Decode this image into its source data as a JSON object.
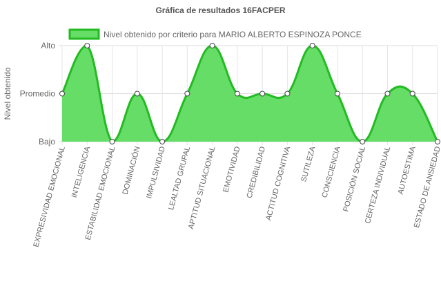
{
  "chart_data": {
    "type": "area",
    "title": "Gráfica de resultados 16FACPER",
    "ylabel": "Nivel obtenido",
    "xlabel": "",
    "y_levels": [
      "Bajo",
      "Promedio",
      "Alto"
    ],
    "ylim": [
      0,
      2
    ],
    "legend_position": "top",
    "grid": true,
    "categories": [
      "EXPRESIVIDAD EMOCIONAL",
      "INTELIGENCIA",
      "ESTABILIDAD EMOCIONAL",
      "DOMINACIÓN",
      "IMPULSIVIDAD",
      "LEALTAD GRUPAL",
      "APTITUD SITUACIONAL",
      "EMOTIVIDAD",
      "CREDIBILIDAD",
      "ACTITUD COGNITIVA",
      "SUTILEZA",
      "CONSCIENCIA",
      "POSICIÓN SOCIAL",
      "CERTEZA INDIVIDUAL",
      "AUTOESTIMA",
      "ESTADO DE ANSIEDAD"
    ],
    "series": [
      {
        "name": "Nivel obtenido por criterio para MARIO ALBERTO ESPINOZA PONCE",
        "values": [
          1,
          2,
          0,
          1,
          0,
          1,
          2,
          1,
          1,
          1,
          2,
          1,
          0,
          1,
          1,
          0
        ],
        "line_color": "#22bb22",
        "fill_color": "#66dd66"
      }
    ]
  }
}
